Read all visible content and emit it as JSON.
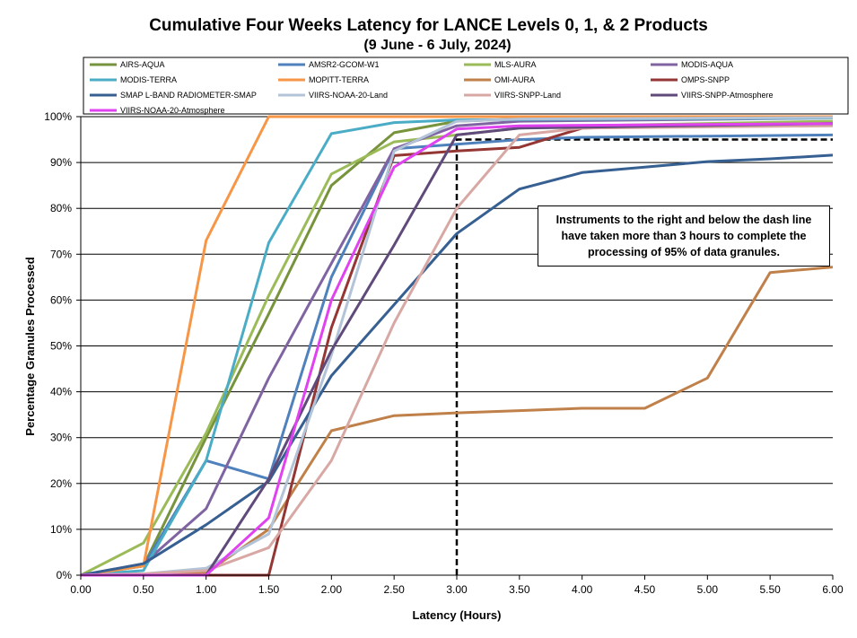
{
  "chart_data": {
    "type": "line",
    "title": "Cumulative Four Weeks Latency  for LANCE Levels 0, 1, & 2 Products",
    "subtitle": "(9  June   - 6  July,  2024)",
    "xlabel": "Latency (Hours)",
    "ylabel": "Percentage Granules Processed",
    "xlim": [
      0,
      6
    ],
    "ylim": [
      0,
      100
    ],
    "x_ticks": [
      "0.00",
      "0.50",
      "1.00",
      "1.50",
      "2.00",
      "2.50",
      "3.00",
      "3.50",
      "4.00",
      "4.50",
      "5.00",
      "5.50",
      "6.00"
    ],
    "y_ticks": [
      "0%",
      "10%",
      "20%",
      "30%",
      "40%",
      "50%",
      "60%",
      "70%",
      "80%",
      "90%",
      "100%"
    ],
    "grid": "horizontal",
    "legend": "top",
    "annotation": "Instruments to the right and below the dash line have taken more than 3 hours to complete the processing of 95% of data granules.",
    "threshold_line": {
      "x": 3.0,
      "y": 95
    },
    "series": [
      {
        "name": "AIRS-AQUA",
        "color": "#77933C",
        "points": [
          [
            0,
            0
          ],
          [
            0.5,
            2
          ],
          [
            1,
            30
          ],
          [
            1.5,
            57
          ],
          [
            2,
            85
          ],
          [
            2.5,
            96.5
          ],
          [
            3,
            99
          ],
          [
            3.5,
            99.5
          ],
          [
            6,
            99.8
          ]
        ]
      },
      {
        "name": "AMSR2-GCOM-W1",
        "color": "#4F81BD",
        "points": [
          [
            0,
            0
          ],
          [
            0.5,
            2
          ],
          [
            1,
            25
          ],
          [
            1.5,
            21
          ],
          [
            2,
            65
          ],
          [
            2.5,
            93
          ],
          [
            3,
            94
          ],
          [
            3.5,
            95
          ],
          [
            4,
            95.5
          ],
          [
            6,
            96
          ]
        ]
      },
      {
        "name": "MLS-AURA",
        "color": "#9BBB59",
        "points": [
          [
            0,
            0
          ],
          [
            0.5,
            7
          ],
          [
            1,
            31
          ],
          [
            1.5,
            61
          ],
          [
            2,
            87.5
          ],
          [
            2.5,
            94.5
          ],
          [
            3,
            96
          ],
          [
            3.5,
            97.5
          ],
          [
            4,
            98
          ],
          [
            6,
            99
          ]
        ]
      },
      {
        "name": "MODIS-AQUA",
        "color": "#8064A2",
        "points": [
          [
            0,
            0
          ],
          [
            0.5,
            2.5
          ],
          [
            1,
            14.5
          ],
          [
            1.5,
            43
          ],
          [
            2,
            68
          ],
          [
            2.5,
            93
          ],
          [
            3,
            98
          ],
          [
            3.5,
            99
          ],
          [
            6,
            99.7
          ]
        ]
      },
      {
        "name": "MODIS-TERRA",
        "color": "#4BACC6",
        "points": [
          [
            0,
            0
          ],
          [
            0.5,
            1
          ],
          [
            1,
            25
          ],
          [
            1.5,
            72.5
          ],
          [
            2,
            96.3
          ],
          [
            2.5,
            98.7
          ],
          [
            3,
            99.3
          ],
          [
            6,
            99.7
          ]
        ]
      },
      {
        "name": "MOPITT-TERRA",
        "color": "#F79646",
        "points": [
          [
            0,
            0
          ],
          [
            0.5,
            2
          ],
          [
            1,
            73
          ],
          [
            1.5,
            100
          ],
          [
            6,
            100
          ]
        ]
      },
      {
        "name": "OMI-AURA",
        "color": "#C0804A",
        "points": [
          [
            0,
            0
          ],
          [
            0.5,
            0
          ],
          [
            1,
            0.5
          ],
          [
            1.5,
            10
          ],
          [
            2,
            31.5
          ],
          [
            2.5,
            34.8
          ],
          [
            3,
            35.4
          ],
          [
            3.5,
            35.9
          ],
          [
            4,
            36.4
          ],
          [
            4.5,
            36.4
          ],
          [
            5,
            43
          ],
          [
            5.5,
            66
          ],
          [
            6,
            67.2
          ]
        ]
      },
      {
        "name": "OMPS-SNPP",
        "color": "#943634",
        "points": [
          [
            0,
            0
          ],
          [
            1.5,
            0
          ],
          [
            2,
            54
          ],
          [
            2.5,
            91.5
          ],
          [
            3,
            92.5
          ],
          [
            3.5,
            93.3
          ],
          [
            4,
            97.5
          ],
          [
            6,
            98.5
          ]
        ]
      },
      {
        "name": "SMAP L-BAND RADIOMETER-SMAP",
        "color": "#376092",
        "points": [
          [
            0,
            0
          ],
          [
            0.5,
            2.5
          ],
          [
            1,
            11
          ],
          [
            1.5,
            20.5
          ],
          [
            2,
            43.5
          ],
          [
            2.5,
            59
          ],
          [
            3,
            74.5
          ],
          [
            3.5,
            84.2
          ],
          [
            4,
            87.8
          ],
          [
            4.5,
            89
          ],
          [
            5,
            90.2
          ],
          [
            5.5,
            90.8
          ],
          [
            6,
            91.6
          ]
        ]
      },
      {
        "name": "VIIRS-NOAA-20-Land",
        "color": "#B3C3D8",
        "points": [
          [
            0,
            0
          ],
          [
            0.5,
            0.3
          ],
          [
            1,
            1.5
          ],
          [
            1.5,
            9
          ],
          [
            2,
            48
          ],
          [
            2.5,
            92.5
          ],
          [
            3,
            99
          ],
          [
            3.5,
            99.5
          ],
          [
            6,
            99.8
          ]
        ]
      },
      {
        "name": "VIIRS-SNPP-Land",
        "color": "#D8A8A4",
        "points": [
          [
            0,
            0
          ],
          [
            0.5,
            0.3
          ],
          [
            1,
            1
          ],
          [
            1.5,
            6
          ],
          [
            2,
            25
          ],
          [
            2.5,
            55
          ],
          [
            3,
            80
          ],
          [
            3.5,
            96
          ],
          [
            4,
            97.5
          ],
          [
            6,
            98
          ]
        ]
      },
      {
        "name": "VIIRS-SNPP-Atmosphere",
        "color": "#604A7B",
        "points": [
          [
            0,
            0
          ],
          [
            1,
            0
          ],
          [
            1.5,
            21
          ],
          [
            2,
            49
          ],
          [
            2.5,
            72
          ],
          [
            3,
            96
          ],
          [
            3.5,
            97.5
          ],
          [
            6,
            98.5
          ]
        ]
      },
      {
        "name": "VIIRS-NOAA-20-Atmosphere",
        "color": "#E042F0",
        "points": [
          [
            0,
            0
          ],
          [
            1,
            0
          ],
          [
            1.5,
            12.5
          ],
          [
            2,
            60
          ],
          [
            2.5,
            89
          ],
          [
            3,
            97.3
          ],
          [
            3.5,
            98
          ],
          [
            6,
            98.5
          ]
        ]
      }
    ]
  }
}
